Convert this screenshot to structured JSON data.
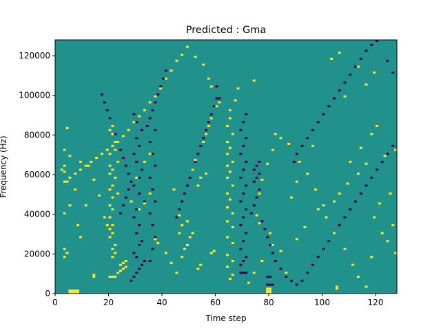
{
  "chart_data": {
    "type": "heatmap",
    "title": "Predicted : Gma",
    "xlabel": "Time step",
    "ylabel": "Frequency (Hz)",
    "xlim": [
      0,
      128
    ],
    "ylim": [
      0,
      128000
    ],
    "x_ticks": [
      0,
      20,
      40,
      60,
      80,
      100,
      120
    ],
    "y_ticks": [
      0,
      20000,
      40000,
      60000,
      80000,
      100000,
      120000
    ],
    "x_tick_labels": [
      "0",
      "20",
      "40",
      "60",
      "80",
      "100",
      "120"
    ],
    "y_tick_labels": [
      "0",
      "20000",
      "40000",
      "60000",
      "80000",
      "100000",
      "120000"
    ],
    "n_time_steps": 128,
    "n_frequency_bins": 128,
    "colors": {
      "background": "#21918c",
      "low": "#440154",
      "high": "#fde725"
    },
    "background_value": 0,
    "high_cells": [
      [
        5,
        0
      ],
      [
        6,
        0
      ],
      [
        7,
        0
      ],
      [
        8,
        0
      ],
      [
        5,
        1
      ],
      [
        6,
        1
      ],
      [
        7,
        1
      ],
      [
        8,
        1
      ],
      [
        79,
        0
      ],
      [
        80,
        0
      ],
      [
        79,
        1
      ],
      [
        80,
        1
      ],
      [
        79,
        2
      ],
      [
        80,
        2
      ],
      [
        105,
        2
      ],
      [
        105,
        3
      ],
      [
        14,
        8
      ],
      [
        14,
        9
      ],
      [
        20,
        8
      ],
      [
        21,
        8
      ],
      [
        22,
        8
      ],
      [
        23,
        10
      ],
      [
        24,
        11
      ],
      [
        25,
        12
      ],
      [
        26,
        13
      ],
      [
        24,
        14
      ],
      [
        25,
        15
      ],
      [
        26,
        16
      ],
      [
        21,
        18
      ],
      [
        22,
        20
      ],
      [
        21,
        22
      ],
      [
        22,
        24
      ],
      [
        20,
        28
      ],
      [
        21,
        30
      ],
      [
        20,
        32
      ],
      [
        21,
        34
      ],
      [
        20,
        38
      ],
      [
        21,
        42
      ],
      [
        20,
        44
      ],
      [
        21,
        48
      ],
      [
        23,
        50
      ],
      [
        20,
        52
      ],
      [
        21,
        54
      ],
      [
        22,
        58
      ],
      [
        20,
        60
      ],
      [
        21,
        62
      ],
      [
        20,
        64
      ],
      [
        23,
        66
      ],
      [
        20,
        70
      ],
      [
        22,
        72
      ],
      [
        22,
        76
      ],
      [
        21,
        80
      ],
      [
        20,
        82
      ],
      [
        21,
        84
      ],
      [
        3,
        18
      ],
      [
        3,
        22
      ],
      [
        4,
        20
      ],
      [
        9,
        28
      ],
      [
        8,
        34
      ],
      [
        3,
        40
      ],
      [
        5,
        44
      ],
      [
        7,
        52
      ],
      [
        4,
        56
      ],
      [
        3,
        61
      ],
      [
        2,
        62
      ],
      [
        3,
        64
      ],
      [
        5,
        69
      ],
      [
        3,
        72
      ],
      [
        4,
        83
      ],
      [
        9,
        66
      ],
      [
        12,
        64
      ],
      [
        14,
        57
      ],
      [
        16,
        49
      ],
      [
        11,
        44
      ],
      [
        18,
        38
      ],
      [
        19,
        34
      ],
      [
        28,
        46
      ],
      [
        30,
        58
      ],
      [
        33,
        66
      ],
      [
        35,
        70
      ],
      [
        31,
        42
      ],
      [
        33,
        45
      ],
      [
        35,
        50
      ],
      [
        38,
        25
      ],
      [
        37,
        27
      ],
      [
        41,
        20
      ],
      [
        43,
        15
      ],
      [
        45,
        10
      ],
      [
        47,
        18
      ],
      [
        48,
        22
      ],
      [
        46,
        30
      ],
      [
        47,
        34
      ],
      [
        49,
        24
      ],
      [
        46,
        39
      ],
      [
        49,
        36
      ],
      [
        44,
        52
      ],
      [
        51,
        30
      ],
      [
        53,
        54
      ],
      [
        54,
        58
      ],
      [
        51,
        62
      ],
      [
        52,
        67
      ],
      [
        56,
        60
      ],
      [
        55,
        76
      ],
      [
        56,
        80
      ],
      [
        58,
        20
      ],
      [
        59,
        21
      ],
      [
        53,
        12
      ],
      [
        54,
        14
      ],
      [
        50,
        28
      ],
      [
        57,
        84
      ],
      [
        58,
        88
      ],
      [
        65,
        7
      ],
      [
        66,
        9
      ],
      [
        64,
        13
      ],
      [
        66,
        16
      ],
      [
        64,
        19
      ],
      [
        66,
        25
      ],
      [
        64,
        28
      ],
      [
        66,
        33
      ],
      [
        64,
        36
      ],
      [
        66,
        40
      ],
      [
        64,
        43
      ],
      [
        65,
        47
      ],
      [
        64,
        50
      ],
      [
        66,
        54
      ],
      [
        64,
        58
      ],
      [
        65,
        61
      ],
      [
        64,
        64
      ],
      [
        66,
        66
      ],
      [
        64,
        70
      ],
      [
        65,
        73
      ],
      [
        64,
        76
      ],
      [
        66,
        80
      ],
      [
        64,
        84
      ],
      [
        65,
        88
      ],
      [
        65,
        92
      ],
      [
        67,
        97
      ],
      [
        68,
        103
      ],
      [
        74,
        107
      ],
      [
        86,
        10
      ],
      [
        84,
        21
      ],
      [
        90,
        27
      ],
      [
        93,
        33
      ],
      [
        98,
        42
      ],
      [
        104,
        46
      ],
      [
        106,
        50
      ],
      [
        109,
        55
      ],
      [
        113,
        60
      ],
      [
        116,
        65
      ],
      [
        114,
        73
      ],
      [
        118,
        80
      ],
      [
        120,
        84
      ],
      [
        127,
        20
      ],
      [
        122,
        30
      ],
      [
        119,
        38
      ],
      [
        121,
        45
      ],
      [
        125,
        50
      ],
      [
        128,
        57
      ],
      [
        123,
        69
      ],
      [
        110,
        66
      ],
      [
        108,
        99
      ],
      [
        116,
        105
      ],
      [
        119,
        111
      ],
      [
        113,
        114
      ],
      [
        106,
        121
      ],
      [
        103,
        118
      ],
      [
        96,
        74
      ],
      [
        91,
        66
      ],
      [
        87,
        75
      ],
      [
        84,
        78
      ],
      [
        82,
        80
      ],
      [
        81,
        72
      ],
      [
        79,
        65
      ],
      [
        77,
        57
      ],
      [
        76,
        50
      ],
      [
        75,
        39
      ],
      [
        76,
        35
      ],
      [
        80,
        30
      ],
      [
        81,
        24
      ],
      [
        77,
        16
      ],
      [
        74,
        10
      ],
      [
        72,
        5
      ],
      [
        88,
        48
      ],
      [
        90,
        56
      ],
      [
        94,
        60
      ],
      [
        97,
        52
      ],
      [
        100,
        44
      ],
      [
        101,
        38
      ],
      [
        104,
        30
      ],
      [
        108,
        22
      ],
      [
        111,
        14
      ],
      [
        113,
        8
      ],
      [
        116,
        3
      ],
      [
        118,
        18
      ],
      [
        124,
        26
      ],
      [
        126,
        34
      ],
      [
        128,
        44
      ],
      [
        127,
        72
      ],
      [
        60,
        94
      ],
      [
        61,
        96
      ],
      [
        58,
        104
      ],
      [
        57,
        108
      ],
      [
        55,
        115
      ],
      [
        52,
        119
      ],
      [
        49,
        124
      ],
      [
        47,
        120
      ],
      [
        45,
        117
      ],
      [
        43,
        112
      ],
      [
        41,
        108
      ],
      [
        39,
        103
      ],
      [
        37,
        99
      ],
      [
        35,
        96
      ],
      [
        33,
        92
      ],
      [
        31,
        89
      ],
      [
        29,
        86
      ],
      [
        27,
        82
      ],
      [
        25,
        79
      ],
      [
        23,
        76
      ],
      [
        21,
        74
      ],
      [
        19,
        72
      ],
      [
        17,
        70
      ],
      [
        15,
        68
      ],
      [
        13,
        66
      ],
      [
        11,
        64
      ],
      [
        9,
        62
      ],
      [
        7,
        60
      ],
      [
        5,
        58
      ],
      [
        3,
        56
      ]
    ],
    "low_cells": [
      [
        79,
        4
      ],
      [
        80,
        4
      ],
      [
        81,
        4
      ],
      [
        79,
        8
      ],
      [
        80,
        8
      ],
      [
        69,
        10
      ],
      [
        70,
        10
      ],
      [
        71,
        10
      ],
      [
        69,
        14
      ],
      [
        70,
        16
      ],
      [
        71,
        18
      ],
      [
        69,
        22
      ],
      [
        70,
        26
      ],
      [
        71,
        30
      ],
      [
        69,
        34
      ],
      [
        70,
        38
      ],
      [
        71,
        42
      ],
      [
        69,
        46
      ],
      [
        70,
        50
      ],
      [
        71,
        54
      ],
      [
        69,
        58
      ],
      [
        70,
        62
      ],
      [
        71,
        66
      ],
      [
        69,
        70
      ],
      [
        70,
        74
      ],
      [
        71,
        78
      ],
      [
        69,
        82
      ],
      [
        70,
        86
      ],
      [
        71,
        90
      ],
      [
        28,
        6
      ],
      [
        29,
        8
      ],
      [
        30,
        10
      ],
      [
        31,
        12
      ],
      [
        32,
        14
      ],
      [
        33,
        16
      ],
      [
        30,
        18
      ],
      [
        29,
        20
      ],
      [
        31,
        24
      ],
      [
        32,
        26
      ],
      [
        30,
        30
      ],
      [
        31,
        34
      ],
      [
        29,
        38
      ],
      [
        30,
        42
      ],
      [
        33,
        46
      ],
      [
        31,
        50
      ],
      [
        29,
        54
      ],
      [
        31,
        58
      ],
      [
        32,
        62
      ],
      [
        30,
        66
      ],
      [
        29,
        70
      ],
      [
        31,
        74
      ],
      [
        30,
        78
      ],
      [
        32,
        82
      ],
      [
        30,
        86
      ],
      [
        29,
        90
      ],
      [
        35,
        16
      ],
      [
        36,
        22
      ],
      [
        37,
        28
      ],
      [
        36,
        34
      ],
      [
        35,
        40
      ],
      [
        37,
        46
      ],
      [
        36,
        52
      ],
      [
        35,
        58
      ],
      [
        37,
        64
      ],
      [
        36,
        70
      ],
      [
        35,
        76
      ],
      [
        37,
        82
      ],
      [
        74,
        56
      ],
      [
        75,
        58
      ],
      [
        76,
        60
      ],
      [
        74,
        62
      ],
      [
        75,
        64
      ],
      [
        76,
        66
      ],
      [
        73,
        40
      ],
      [
        74,
        44
      ],
      [
        75,
        48
      ],
      [
        76,
        52
      ],
      [
        77,
        36
      ],
      [
        78,
        32
      ],
      [
        79,
        28
      ],
      [
        80,
        24
      ],
      [
        81,
        20
      ],
      [
        82,
        16
      ],
      [
        84,
        12
      ],
      [
        86,
        8
      ],
      [
        88,
        6
      ],
      [
        90,
        4
      ],
      [
        92,
        6
      ],
      [
        94,
        10
      ],
      [
        96,
        14
      ],
      [
        98,
        18
      ],
      [
        100,
        22
      ],
      [
        102,
        26
      ],
      [
        104,
        30
      ],
      [
        106,
        34
      ],
      [
        108,
        38
      ],
      [
        110,
        42
      ],
      [
        112,
        46
      ],
      [
        114,
        50
      ],
      [
        116,
        54
      ],
      [
        118,
        58
      ],
      [
        120,
        62
      ],
      [
        122,
        66
      ],
      [
        124,
        70
      ],
      [
        126,
        74
      ],
      [
        128,
        78
      ],
      [
        89,
        66
      ],
      [
        90,
        70
      ],
      [
        92,
        74
      ],
      [
        94,
        78
      ],
      [
        96,
        82
      ],
      [
        98,
        86
      ],
      [
        100,
        90
      ],
      [
        102,
        94
      ],
      [
        104,
        98
      ],
      [
        106,
        102
      ],
      [
        108,
        106
      ],
      [
        110,
        110
      ],
      [
        112,
        114
      ],
      [
        114,
        118
      ],
      [
        116,
        122
      ],
      [
        118,
        125
      ],
      [
        120,
        127
      ],
      [
        124,
        117
      ],
      [
        126,
        111
      ],
      [
        128,
        105
      ],
      [
        60,
        104
      ],
      [
        61,
        98
      ],
      [
        45,
        38
      ],
      [
        46,
        42
      ],
      [
        47,
        46
      ],
      [
        48,
        50
      ],
      [
        49,
        54
      ],
      [
        50,
        58
      ],
      [
        51,
        62
      ],
      [
        52,
        66
      ],
      [
        53,
        70
      ],
      [
        54,
        74
      ],
      [
        55,
        78
      ],
      [
        56,
        82
      ],
      [
        57,
        86
      ],
      [
        58,
        90
      ],
      [
        59,
        94
      ],
      [
        60,
        98
      ],
      [
        41,
        112
      ],
      [
        40,
        108
      ],
      [
        39,
        104
      ],
      [
        38,
        100
      ],
      [
        37,
        96
      ],
      [
        36,
        92
      ],
      [
        35,
        88
      ],
      [
        34,
        84
      ],
      [
        24,
        40
      ],
      [
        25,
        44
      ],
      [
        26,
        48
      ],
      [
        27,
        52
      ],
      [
        28,
        56
      ],
      [
        27,
        60
      ],
      [
        26,
        64
      ],
      [
        25,
        68
      ],
      [
        24,
        72
      ],
      [
        23,
        76
      ],
      [
        22,
        80
      ],
      [
        21,
        84
      ],
      [
        20,
        88
      ],
      [
        19,
        92
      ],
      [
        18,
        96
      ],
      [
        17,
        100
      ]
    ]
  }
}
